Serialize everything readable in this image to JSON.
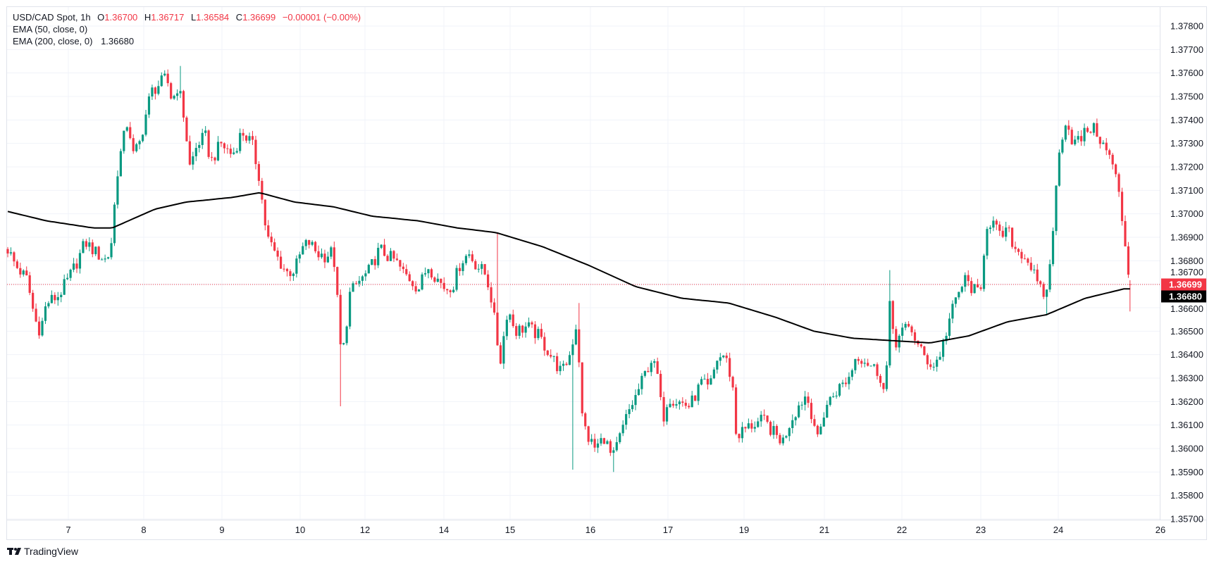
{
  "legend": {
    "symbol": "USD/CAD Spot, 1h",
    "o_label": "O",
    "open": "1.36700",
    "h_label": "H",
    "high": "1.36717",
    "l_label": "L",
    "low": "1.36584",
    "c_label": "C",
    "close": "1.36699",
    "change": "−0.00001 (−0.00%)",
    "ema50": "EMA (50, close, 0)",
    "ema200": "EMA (200, close, 0)",
    "ema200_value": "1.36680"
  },
  "chart_data": {
    "type": "candlestick",
    "interval": "1h",
    "ylim": [
      1.357,
      1.378
    ],
    "grid": true,
    "yticks": [
      "1.37800",
      "1.37700",
      "1.37600",
      "1.37500",
      "1.37400",
      "1.37300",
      "1.37200",
      "1.37100",
      "1.37000",
      "1.36900",
      "1.36800",
      "1.36700",
      "1.36600",
      "1.36500",
      "1.36400",
      "1.36300",
      "1.36200",
      "1.36100",
      "1.36000",
      "1.35900",
      "1.35800",
      "1.35700"
    ],
    "xticks": [
      "7",
      "8",
      "9",
      "10",
      "12",
      "14",
      "15",
      "16",
      "17",
      "19",
      "21",
      "22",
      "23",
      "24",
      "26"
    ],
    "last_price": "1.36699",
    "ema200_last": "1.36680",
    "last_candle": {
      "open": 1.367,
      "high": 1.36717,
      "low": 1.36584,
      "close": 1.36699
    },
    "close_trace": [
      1.3685,
      1.3678,
      1.3672,
      1.3655,
      1.365,
      1.3662,
      1.3665,
      1.3672,
      1.368,
      1.3688,
      1.3683,
      1.368,
      1.369,
      1.3715,
      1.373,
      1.374,
      1.3725,
      1.373,
      1.3745,
      1.3752,
      1.3755,
      1.3758,
      1.3748,
      1.3755,
      1.374,
      1.372,
      1.373,
      1.3733,
      1.3722,
      1.373,
      1.3725,
      1.3735,
      1.373,
      1.3715,
      1.37,
      1.369,
      1.3685,
      1.368,
      1.3675,
      1.3676,
      1.3685,
      1.3688,
      1.3683,
      1.3682,
      1.3684,
      1.366,
      1.364,
      1.3645,
      1.3665,
      1.367,
      1.3675,
      1.3685,
      1.3682,
      1.368,
      1.3675,
      1.3672,
      1.3668,
      1.3678,
      1.3672,
      1.3668,
      1.367,
      1.368,
      1.3683,
      1.3678,
      1.3675,
      1.3668,
      1.365,
      1.3636,
      1.366,
      1.365,
      1.3652,
      1.3648,
      1.364,
      1.3632,
      1.364,
      1.3655,
      1.3615,
      1.3605,
      1.36,
      1.3605,
      1.3595,
      1.3605,
      1.3615,
      1.3622,
      1.363,
      1.3638,
      1.3632,
      1.3612,
      1.3622,
      1.362,
      1.3618,
      1.3628,
      1.3625,
      1.3638,
      1.364,
      1.3628,
      1.3605,
      1.3608,
      1.361,
      1.3612,
      1.3606,
      1.3603,
      1.3612,
      1.3618,
      1.3623,
      1.3612,
      1.3603,
      1.3618,
      1.3625,
      1.363,
      1.364,
      1.3638,
      1.3635,
      1.3632,
      1.3622,
      1.366,
      1.3645,
      1.365,
      1.3652,
      1.3643,
      1.3638,
      1.3635,
      1.3642,
      1.3655,
      1.3665,
      1.3672,
      1.3668,
      1.3665,
      1.3695,
      1.3697,
      1.369,
      1.3693,
      1.3685,
      1.3683,
      1.3678,
      1.3668,
      1.3665,
      1.368,
      1.37,
      1.373,
      1.374,
      1.373,
      1.3732,
      1.3737,
      1.3735,
      1.3728,
      1.3722,
      1.3712,
      1.3692,
      1.36699
    ],
    "notable_wicks": [
      {
        "type": "low",
        "price": 1.3618
      },
      {
        "type": "high",
        "price": 1.3692
      },
      {
        "type": "low",
        "price": 1.3591
      },
      {
        "type": "low",
        "price": 1.359
      },
      {
        "type": "high",
        "price": 1.3662
      },
      {
        "type": "high",
        "price": 1.3676
      },
      {
        "type": "high",
        "price": 1.3763
      },
      {
        "type": "low",
        "price": 1.3657
      },
      {
        "type": "low",
        "price": 1.3649
      }
    ],
    "ema200": [
      1.3701,
      1.3697,
      1.3694,
      1.3694,
      1.3702,
      1.3705,
      1.3707,
      1.3709,
      1.3705,
      1.3703,
      1.3699,
      1.3697,
      1.3694,
      1.3692,
      1.3686,
      1.3678,
      1.3669,
      1.3664,
      1.3662,
      1.3656,
      1.365,
      1.3647,
      1.3646,
      1.3645,
      1.3648,
      1.3654,
      1.3657,
      1.3664,
      1.3668,
      1.3668
    ],
    "colors": {
      "up": "#089981",
      "down": "#f23645",
      "ema200": "#000000",
      "grid": "#f0f3fa",
      "last_price": "#f23645",
      "ema_label": "#000000"
    }
  },
  "branding": {
    "logo_text": "TradingView"
  }
}
